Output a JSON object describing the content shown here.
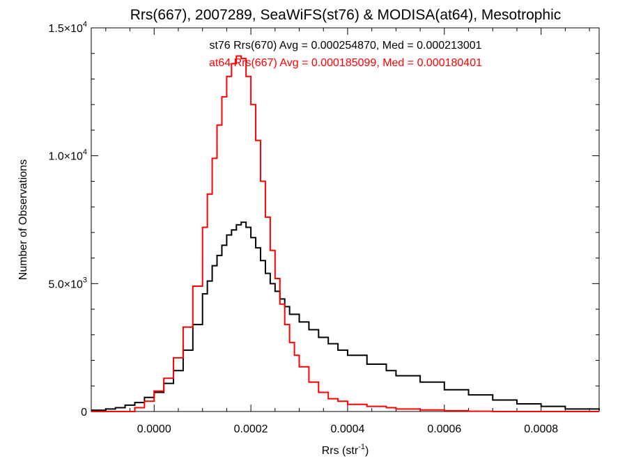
{
  "chart_data": {
    "type": "line",
    "title": "Rrs(667), 2007289, SeaWiFS(st76) & MODISA(at64), Mesotrophic",
    "xlabel": "Rrs (str⁻¹)",
    "ylabel": "Number of Observations",
    "xlim": [
      -0.00013,
      0.00092
    ],
    "ylim": [
      0,
      15000
    ],
    "x_ticks": [
      0.0,
      0.0002,
      0.0004,
      0.0006,
      0.0008
    ],
    "x_tick_labels": [
      "0.0000",
      "0.0002",
      "0.0004",
      "0.0006",
      "0.0008"
    ],
    "y_ticks": [
      0,
      5000,
      10000,
      15000
    ],
    "y_tick_labels": [
      {
        "text": "0",
        "exp": ""
      },
      {
        "text": "5.0×10",
        "exp": "3"
      },
      {
        "text": "1.0×10",
        "exp": "4"
      },
      {
        "text": "1.5×10",
        "exp": "4"
      }
    ],
    "grid": false,
    "annotations": [
      {
        "text": "st76 Rrs(670) Avg = 0.000254870, Med = 0.000213001",
        "color": "#000000"
      },
      {
        "text": "at64 Rrs(667) Avg = 0.000185099, Med = 0.000180401",
        "color": "#ff0000"
      }
    ],
    "series": [
      {
        "color": "#000000",
        "step": true,
        "x": [
          -0.00013,
          -0.0001,
          -8e-05,
          -6e-05,
          -4e-05,
          -2e-05,
          0.0,
          2e-05,
          4e-05,
          6e-05,
          8e-05,
          0.0001,
          0.00011,
          0.00012,
          0.00013,
          0.00014,
          0.00015,
          0.00016,
          0.00017,
          0.00018,
          0.00019,
          0.0002,
          0.00021,
          0.00022,
          0.00023,
          0.00024,
          0.00025,
          0.00026,
          0.00027,
          0.00028,
          0.0003,
          0.00032,
          0.00034,
          0.00036,
          0.00038,
          0.0004,
          0.00044,
          0.00048,
          0.0005,
          0.00055,
          0.0006,
          0.00065,
          0.0007,
          0.00075,
          0.0008,
          0.00085,
          0.00092
        ],
        "y": [
          50,
          100,
          150,
          250,
          350,
          550,
          750,
          1100,
          1600,
          2400,
          3400,
          4600,
          5100,
          5700,
          6100,
          6500,
          6900,
          7100,
          7300,
          7400,
          7200,
          6800,
          6400,
          5900,
          5400,
          5000,
          4700,
          4400,
          4100,
          3800,
          3500,
          3200,
          2900,
          2650,
          2400,
          2200,
          1850,
          1600,
          1400,
          1150,
          850,
          650,
          450,
          300,
          200,
          100,
          50
        ]
      },
      {
        "color": "#ff0000",
        "step": true,
        "x": [
          -0.00013,
          -6e-05,
          -4e-05,
          -2e-05,
          0.0,
          2e-05,
          4e-05,
          6e-05,
          8e-05,
          0.0001,
          0.00011,
          0.00012,
          0.00013,
          0.00014,
          0.00015,
          0.00016,
          0.00017,
          0.00018,
          0.00019,
          0.0002,
          0.00021,
          0.00022,
          0.00023,
          0.00024,
          0.00025,
          0.00026,
          0.00027,
          0.00028,
          0.00029,
          0.0003,
          0.00032,
          0.00034,
          0.00036,
          0.00038,
          0.0004,
          0.00044,
          0.00048,
          0.0005,
          0.00055,
          0.0006,
          0.00065,
          0.0007,
          0.00075,
          0.0008
        ],
        "y": [
          0,
          0,
          150,
          400,
          800,
          1300,
          2100,
          3300,
          4900,
          7200,
          8500,
          9900,
          11200,
          12300,
          13100,
          13600,
          13900,
          13800,
          13100,
          12000,
          10600,
          9000,
          7600,
          6300,
          5200,
          4200,
          3400,
          2700,
          2200,
          1750,
          1150,
          750,
          500,
          400,
          280,
          200,
          150,
          100,
          60,
          30,
          10,
          0,
          0,
          0
        ]
      }
    ]
  }
}
